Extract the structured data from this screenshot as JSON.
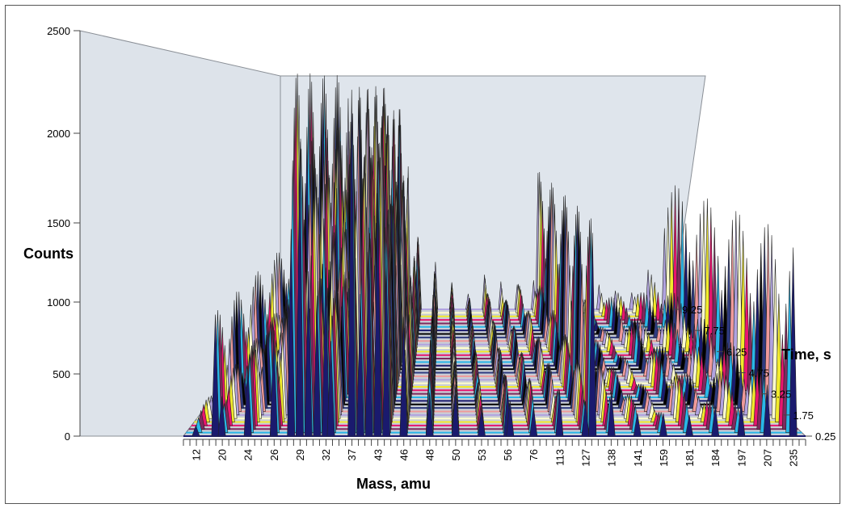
{
  "chart_data": {
    "type": "3d-line-waterfall",
    "title": "",
    "xlabel": "Mass, amu",
    "ylabel": "Counts",
    "zlabel": "Time, s",
    "ylim": [
      0,
      2500
    ],
    "y_ticks": [
      0,
      500,
      1000,
      1500,
      2000,
      2500
    ],
    "x_tick_labels": [
      "12",
      "20",
      "24",
      "26",
      "29",
      "32",
      "37",
      "43",
      "46",
      "48",
      "50",
      "53",
      "56",
      "76",
      "113",
      "127",
      "138",
      "141",
      "159",
      "181",
      "184",
      "197",
      "207",
      "235"
    ],
    "z_tick_labels": [
      "0.25",
      "1.75",
      "3.25",
      "4.75",
      "6.25",
      "7.75",
      "9.25"
    ],
    "z_range": [
      0.25,
      9.25
    ],
    "z_step": 0.25,
    "peaks": [
      {
        "mass": "12",
        "max_counts": 150
      },
      {
        "mass": "18",
        "max_counts": 800
      },
      {
        "mass": "20",
        "max_counts": 350
      },
      {
        "mass": "24",
        "max_counts": 550
      },
      {
        "mass": "26",
        "max_counts": 700
      },
      {
        "mass": "28",
        "max_counts": 2350
      },
      {
        "mass": "29",
        "max_counts": 1900
      },
      {
        "mass": "30",
        "max_counts": 1700
      },
      {
        "mass": "31",
        "max_counts": 1000
      },
      {
        "mass": "32",
        "max_counts": 1250
      },
      {
        "mass": "33",
        "max_counts": 900
      },
      {
        "mass": "37",
        "max_counts": 2250
      },
      {
        "mass": "39",
        "max_counts": 1800
      },
      {
        "mass": "41",
        "max_counts": 1300
      },
      {
        "mass": "43",
        "max_counts": 2050
      },
      {
        "mass": "44",
        "max_counts": 1450
      },
      {
        "mass": "46",
        "max_counts": 800
      },
      {
        "mass": "48",
        "max_counts": 550
      },
      {
        "mass": "50",
        "max_counts": 300
      },
      {
        "mass": "53",
        "max_counts": 250
      },
      {
        "mass": "56",
        "max_counts": 350
      },
      {
        "mass": "58",
        "max_counts": 250
      },
      {
        "mass": "76",
        "max_counts": 300
      },
      {
        "mass": "113",
        "max_counts": 300
      },
      {
        "mass": "127",
        "max_counts": 400
      },
      {
        "mass": "130",
        "max_counts": 1400
      },
      {
        "mass": "138",
        "max_counts": 350
      },
      {
        "mass": "141",
        "max_counts": 200
      },
      {
        "mass": "159",
        "max_counts": 150
      },
      {
        "mass": "181",
        "max_counts": 300
      },
      {
        "mass": "184",
        "max_counts": 200
      },
      {
        "mass": "197",
        "max_counts": 300
      },
      {
        "mass": "207",
        "max_counts": 400
      },
      {
        "mass": "235",
        "max_counts": 1300
      }
    ],
    "series_colors": [
      "#1a1a6e",
      "#29b6e8",
      "#7f2a5e",
      "#e8166f",
      "#f2ea2c",
      "#ffffcc",
      "#b1a3e0",
      "#ef9a9a",
      "#2f3b80",
      "#000000"
    ],
    "grid": false,
    "legend": "none"
  }
}
